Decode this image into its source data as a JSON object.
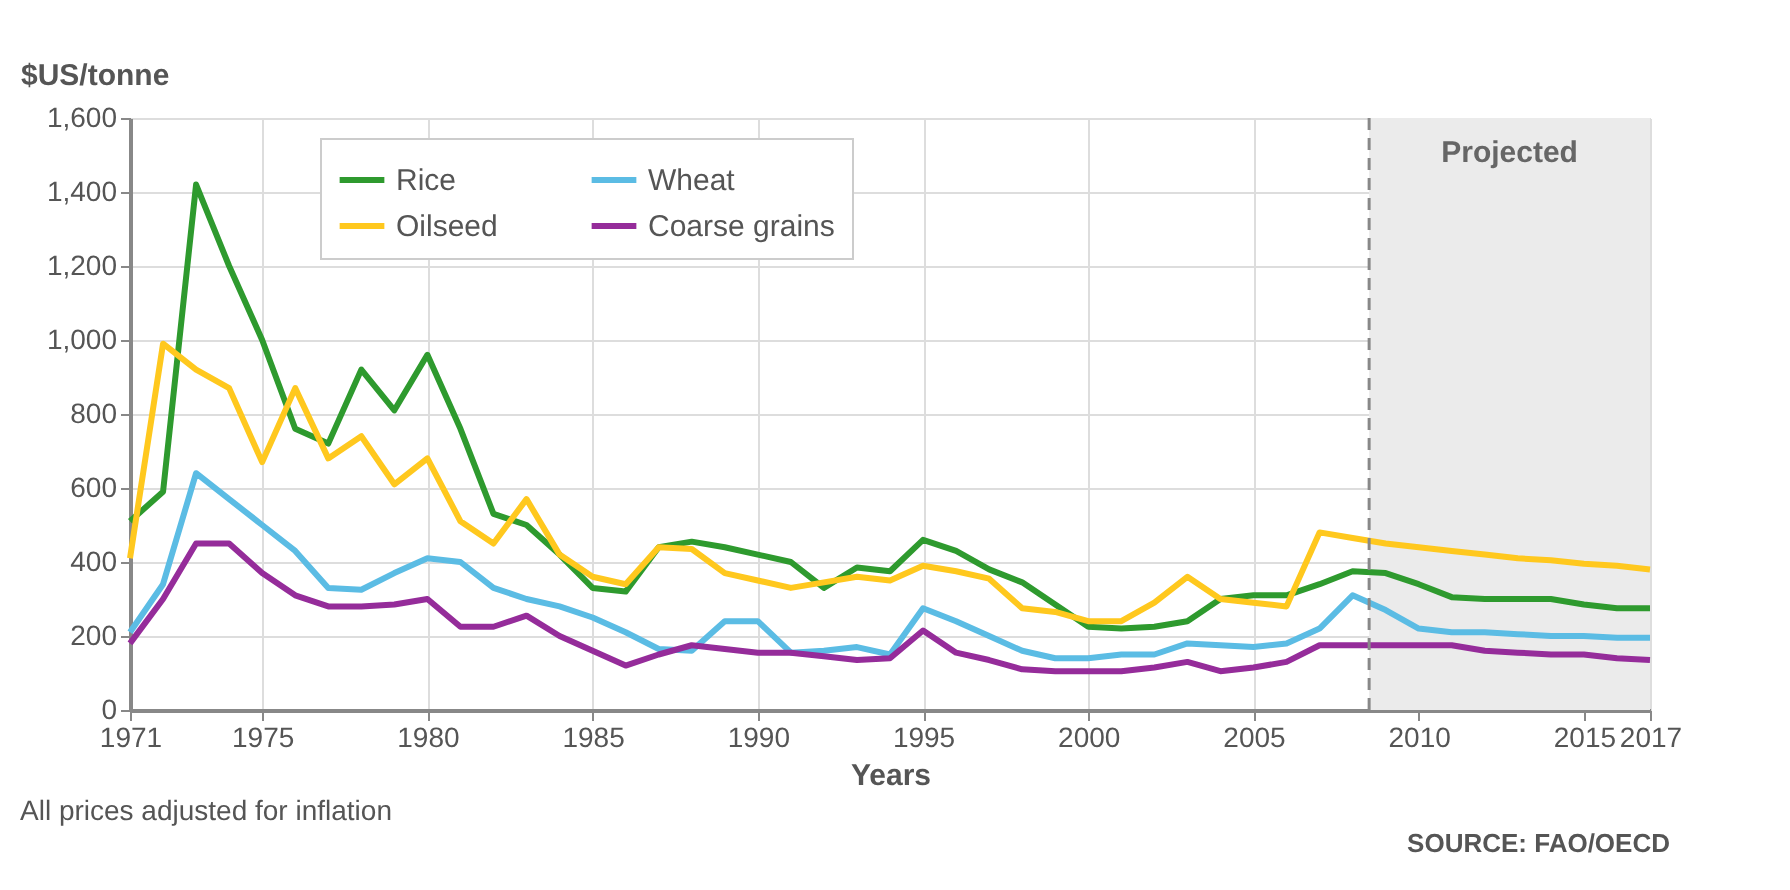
{
  "chart_data": {
    "type": "line",
    "xlabel": "Years",
    "ylabel": "$US/tonne",
    "x": [
      1971,
      1972,
      1973,
      1974,
      1975,
      1976,
      1977,
      1978,
      1979,
      1980,
      1981,
      1982,
      1983,
      1984,
      1985,
      1986,
      1987,
      1988,
      1989,
      1990,
      1991,
      1992,
      1993,
      1994,
      1995,
      1996,
      1997,
      1998,
      1999,
      2000,
      2001,
      2002,
      2003,
      2004,
      2005,
      2006,
      2007,
      2008,
      2009,
      2010,
      2011,
      2012,
      2013,
      2014,
      2015,
      2016,
      2017
    ],
    "series": [
      {
        "name": "Rice",
        "color": "#2e9a2e",
        "values": [
          510,
          590,
          1420,
          1200,
          1000,
          760,
          720,
          920,
          810,
          960,
          760,
          530,
          500,
          420,
          330,
          320,
          440,
          455,
          440,
          420,
          400,
          330,
          385,
          375,
          460,
          430,
          380,
          345,
          285,
          225,
          220,
          225,
          240,
          300,
          310,
          310,
          340,
          375,
          370,
          340,
          305,
          300,
          300,
          300,
          285,
          275,
          275
        ]
      },
      {
        "name": "Wheat",
        "color": "#5bbce4",
        "values": [
          210,
          340,
          640,
          570,
          500,
          430,
          330,
          325,
          370,
          410,
          400,
          330,
          300,
          280,
          250,
          210,
          165,
          160,
          240,
          240,
          155,
          160,
          170,
          150,
          275,
          240,
          200,
          160,
          140,
          140,
          150,
          150,
          180,
          175,
          170,
          180,
          220,
          310,
          270,
          220,
          210,
          210,
          205,
          200,
          200,
          195,
          195
        ]
      },
      {
        "name": "Oilseed",
        "color": "#ffc81e",
        "values": [
          410,
          990,
          920,
          870,
          670,
          870,
          680,
          740,
          610,
          680,
          510,
          450,
          570,
          420,
          360,
          340,
          440,
          435,
          370,
          350,
          330,
          345,
          360,
          350,
          390,
          375,
          355,
          275,
          265,
          240,
          240,
          290,
          360,
          300,
          290,
          280,
          480,
          465,
          450,
          440,
          430,
          420,
          410,
          405,
          395,
          390,
          380
        ]
      },
      {
        "name": "Coarse grains",
        "color": "#952c9a",
        "values": [
          180,
          300,
          450,
          450,
          370,
          310,
          280,
          280,
          285,
          300,
          225,
          225,
          255,
          200,
          160,
          120,
          150,
          175,
          165,
          155,
          155,
          145,
          135,
          140,
          215,
          155,
          135,
          110,
          105,
          105,
          105,
          115,
          130,
          105,
          115,
          130,
          175,
          175,
          175,
          175,
          175,
          160,
          155,
          150,
          150,
          140,
          135
        ]
      }
    ],
    "xlim": [
      1971,
      2017
    ],
    "xticks": [
      1971,
      1975,
      1980,
      1985,
      1990,
      1995,
      2000,
      2005,
      2010,
      2015,
      2017
    ],
    "ylim": [
      0,
      1600
    ],
    "yticks": [
      {
        "value": 0,
        "label": "0"
      },
      {
        "value": 200,
        "label": "200"
      },
      {
        "value": 400,
        "label": "400"
      },
      {
        "value": 600,
        "label": "600"
      },
      {
        "value": 800,
        "label": "800"
      },
      {
        "value": 1000,
        "label": "1,000"
      },
      {
        "value": 1200,
        "label": "1,200"
      },
      {
        "value": 1400,
        "label": "1,400"
      },
      {
        "value": 1600,
        "label": "1,600"
      }
    ],
    "bands": [
      {
        "axis": "x",
        "from": 2008.5,
        "to": 2017,
        "label": "Projected",
        "color": "#ebebeb"
      }
    ],
    "ref_lines": [
      {
        "axis": "x",
        "value": 2008.5,
        "line_style": "dashed",
        "color": "#888888"
      }
    ],
    "annotations": [
      "All prices adjusted for inflation",
      "SOURCE: FAO/OECD"
    ],
    "grid": true,
    "legend": "top left",
    "line_style": "solid"
  }
}
